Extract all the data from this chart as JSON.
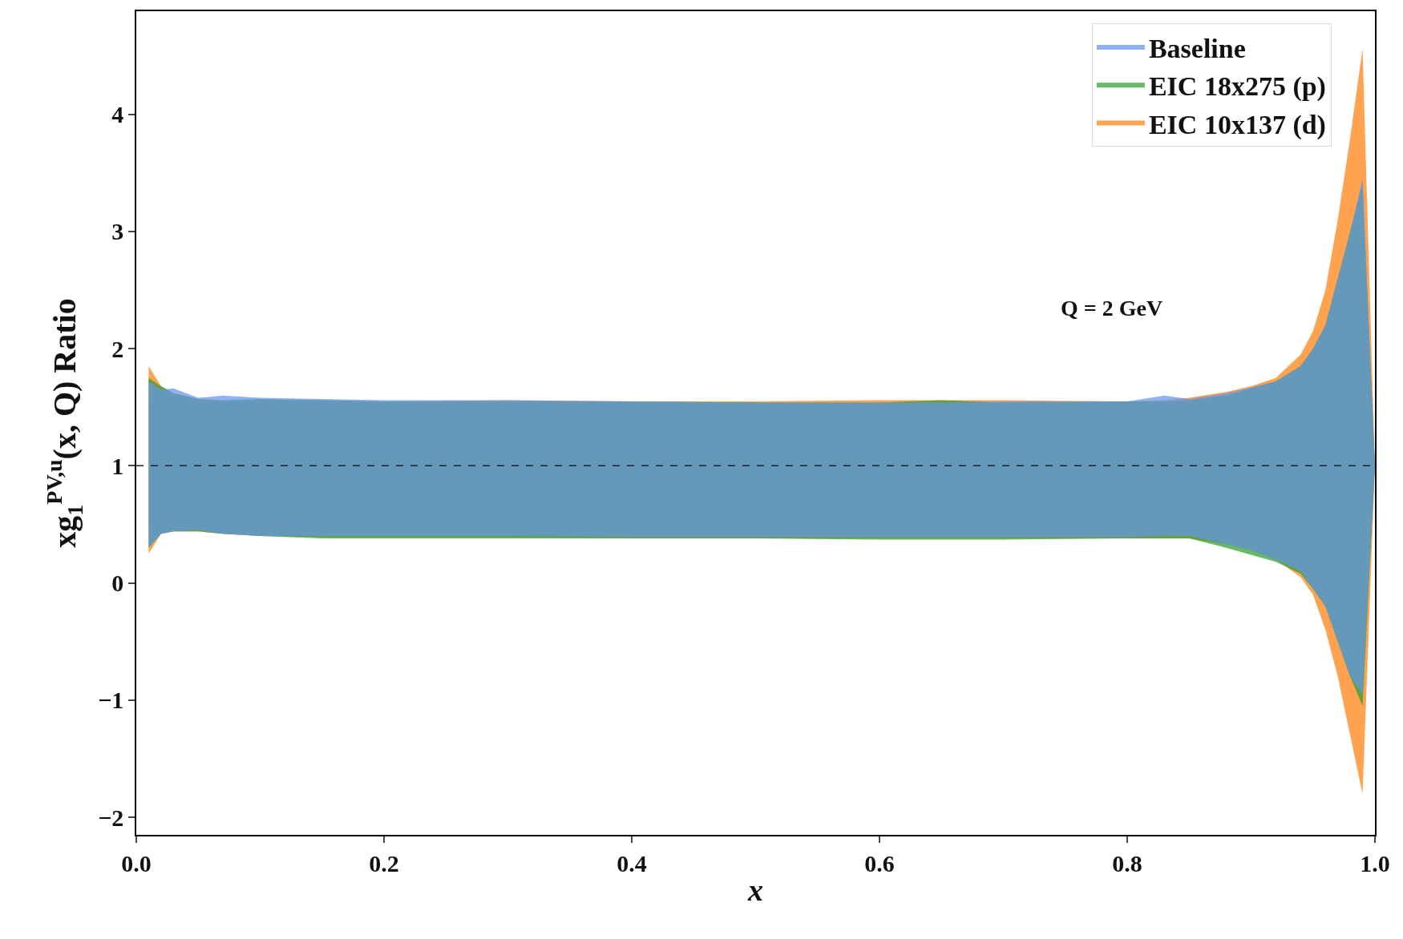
{
  "chart_data": {
    "type": "area",
    "xlabel": "x",
    "ylabel": "xg$_{1}$$^{PV,u}$(x, Q) Ratio",
    "x": [
      0.01,
      0.02,
      0.03,
      0.05,
      0.07,
      0.1,
      0.15,
      0.2,
      0.3,
      0.4,
      0.5,
      0.6,
      0.65,
      0.7,
      0.8,
      0.83,
      0.85,
      0.88,
      0.9,
      0.92,
      0.94,
      0.95,
      0.96,
      0.97,
      0.98,
      0.99,
      1.0
    ],
    "series": [
      {
        "name": "Baseline",
        "color": "#6495ed",
        "values": [
          null,
          null,
          null,
          null,
          null,
          null,
          null,
          null,
          null,
          null,
          null,
          null,
          null,
          null,
          null,
          null,
          null,
          null,
          null,
          null,
          null,
          null,
          null,
          null,
          null,
          null,
          null
        ],
        "upper": [
          1.72,
          1.65,
          1.66,
          1.58,
          1.6,
          1.58,
          1.57,
          1.56,
          1.56,
          1.55,
          1.54,
          1.54,
          1.54,
          1.55,
          1.55,
          1.6,
          1.57,
          1.62,
          1.67,
          1.72,
          1.85,
          2.0,
          2.2,
          2.6,
          3.0,
          3.45,
          1.0
        ],
        "lower": [
          0.3,
          0.42,
          0.44,
          0.45,
          0.42,
          0.4,
          0.4,
          0.4,
          0.4,
          0.39,
          0.39,
          0.39,
          0.39,
          0.39,
          0.39,
          0.4,
          0.4,
          0.33,
          0.28,
          0.2,
          0.1,
          -0.05,
          -0.2,
          -0.5,
          -0.8,
          -0.95,
          1.0
        ]
      },
      {
        "name": "EIC 18x275 (p)",
        "color": "#2ca02c",
        "values": [
          null,
          null,
          null,
          null,
          null,
          null,
          null,
          null,
          null,
          null,
          null,
          null,
          null,
          null,
          null,
          null,
          null,
          null,
          null,
          null,
          null,
          null,
          null,
          null,
          null,
          null,
          null
        ],
        "upper": [
          1.75,
          1.68,
          1.62,
          1.57,
          1.56,
          1.57,
          1.56,
          1.55,
          1.55,
          1.55,
          1.54,
          1.54,
          1.56,
          1.54,
          1.55,
          1.55,
          1.56,
          1.6,
          1.66,
          1.72,
          1.85,
          2.0,
          2.2,
          2.6,
          3.0,
          3.4,
          1.0
        ],
        "lower": [
          0.3,
          0.42,
          0.44,
          0.44,
          0.42,
          0.4,
          0.38,
          0.38,
          0.38,
          0.38,
          0.38,
          0.37,
          0.37,
          0.37,
          0.38,
          0.38,
          0.38,
          0.3,
          0.24,
          0.18,
          0.08,
          -0.05,
          -0.2,
          -0.5,
          -0.8,
          -1.05,
          1.0
        ]
      },
      {
        "name": "EIC 10x137 (d)",
        "color": "#ff7f0e",
        "values": [
          null,
          null,
          null,
          null,
          null,
          null,
          null,
          null,
          null,
          null,
          null,
          null,
          null,
          null,
          null,
          null,
          null,
          null,
          null,
          null,
          null,
          null,
          null,
          null,
          null,
          null,
          null
        ],
        "upper": [
          1.85,
          1.68,
          1.62,
          1.57,
          1.55,
          1.56,
          1.56,
          1.55,
          1.56,
          1.55,
          1.55,
          1.56,
          1.56,
          1.56,
          1.55,
          1.56,
          1.58,
          1.63,
          1.68,
          1.75,
          1.95,
          2.15,
          2.5,
          3.1,
          3.8,
          4.56,
          1.0
        ],
        "lower": [
          0.25,
          0.42,
          0.44,
          0.44,
          0.42,
          0.4,
          0.39,
          0.39,
          0.39,
          0.38,
          0.38,
          0.38,
          0.38,
          0.38,
          0.38,
          0.38,
          0.38,
          0.33,
          0.28,
          0.2,
          0.05,
          -0.1,
          -0.4,
          -0.8,
          -1.3,
          -1.8,
          1.0
        ]
      }
    ],
    "xlim": [
      0.0,
      1.0
    ],
    "xticks": [
      {
        "value": 0.0,
        "label": "0.0"
      },
      0.2,
      0.4,
      0.6,
      0.8,
      {
        "value": 1.0,
        "label": "1.0"
      }
    ],
    "ylim": [
      -2.15,
      4.88
    ],
    "yticks": [
      {
        "value": -2,
        "label": "−2"
      },
      {
        "value": -1,
        "label": "−1"
      },
      0,
      1,
      2,
      3,
      4
    ],
    "ref_lines": [
      {
        "axis": "y",
        "value": 1,
        "color": "#222222",
        "line_style": "dashed"
      }
    ],
    "annotations": [
      "Q = 2 GeV"
    ],
    "legend": "top right"
  }
}
